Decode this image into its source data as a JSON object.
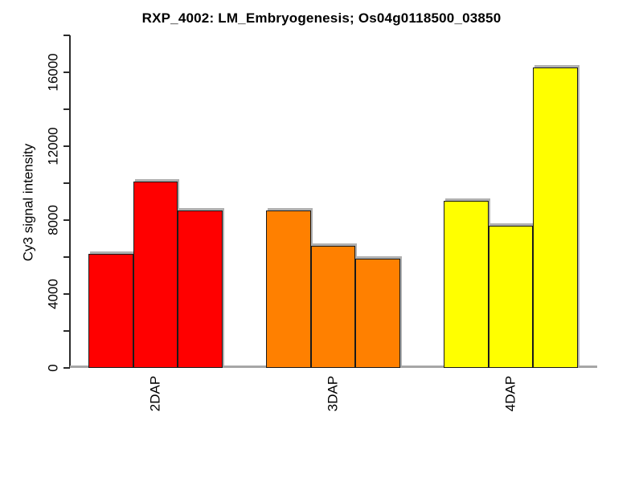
{
  "figure": {
    "title": "RXP_4002: LM_Embryogenesis; Os04g0118500_03850"
  },
  "chart_data": {
    "type": "bar",
    "title": "RXP_4002: LM_Embryogenesis; Os04g0118500_03850",
    "xlabel": "",
    "ylabel": "Cy3 signal intensity",
    "categories": [
      "2DAP",
      "3DAP",
      "4DAP"
    ],
    "groups": [
      {
        "category": "2DAP",
        "color": "#ff0000",
        "values": [
          6180,
          10100,
          8530
        ]
      },
      {
        "category": "3DAP",
        "color": "#ff8000",
        "values": [
          8540,
          6630,
          5920
        ]
      },
      {
        "category": "4DAP",
        "color": "#ffff00",
        "values": [
          9040,
          7690,
          16280
        ]
      }
    ],
    "ylim": [
      0,
      18000
    ],
    "ytick_interval": 2000,
    "ytick_label_interval": 4000,
    "ytick_labels": [
      "0",
      "4000",
      "8000",
      "12000",
      "16000"
    ],
    "grid": false,
    "legend_position": "none",
    "colors": {
      "axis": "#2b2b2b",
      "bar_border": "#1a1a1a",
      "bar_shadow": "#b0b0b0",
      "zero_baseline": "#a6a6a6",
      "background": "#ffffff"
    }
  }
}
